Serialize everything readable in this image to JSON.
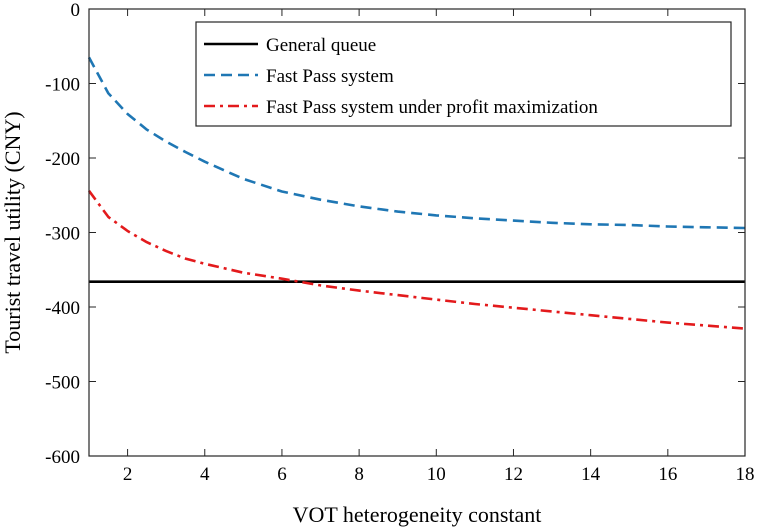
{
  "chart_data": {
    "type": "line",
    "title": "",
    "xlabel": "VOT heterogeneity constant",
    "ylabel": "Tourist travel utility (CNY)",
    "xlim": [
      1,
      18
    ],
    "ylim": [
      -600,
      0
    ],
    "xticks": [
      2,
      4,
      6,
      8,
      10,
      12,
      14,
      16,
      18
    ],
    "yticks": [
      0,
      -100,
      -200,
      -300,
      -400,
      -500,
      -600
    ],
    "legend_position": "top-right",
    "grid": false,
    "series": [
      {
        "name": "General queue",
        "color": "#000000",
        "style": "solid",
        "x": [
          1,
          18
        ],
        "y": [
          -366,
          -366
        ]
      },
      {
        "name": "Fast Pass system",
        "color": "#1f77b4",
        "style": "dashed",
        "x": [
          1,
          1.5,
          2,
          2.5,
          3,
          3.5,
          4,
          5,
          6,
          7,
          8,
          9,
          10,
          11,
          12,
          13,
          14,
          15,
          16,
          17,
          18
        ],
        "y": [
          -65,
          -113,
          -141,
          -162,
          -178,
          -192,
          -205,
          -228,
          -245,
          -256,
          -265,
          -272,
          -277,
          -281,
          -284,
          -287,
          -289,
          -290,
          -292,
          -293,
          -294
        ]
      },
      {
        "name": "Fast Pass system under profit maximization",
        "color": "#e31a1c",
        "style": "dashdot",
        "x": [
          1,
          1.5,
          2,
          2.5,
          3,
          3.5,
          4,
          5,
          6,
          7,
          8,
          9,
          10,
          11,
          12,
          13,
          14,
          15,
          16,
          17,
          18
        ],
        "y": [
          -244,
          -279,
          -298,
          -313,
          -325,
          -335,
          -342,
          -354,
          -362,
          -371,
          -378,
          -384,
          -390,
          -396,
          -401,
          -406,
          -411,
          -416,
          -421,
          -425,
          -429
        ]
      }
    ]
  }
}
